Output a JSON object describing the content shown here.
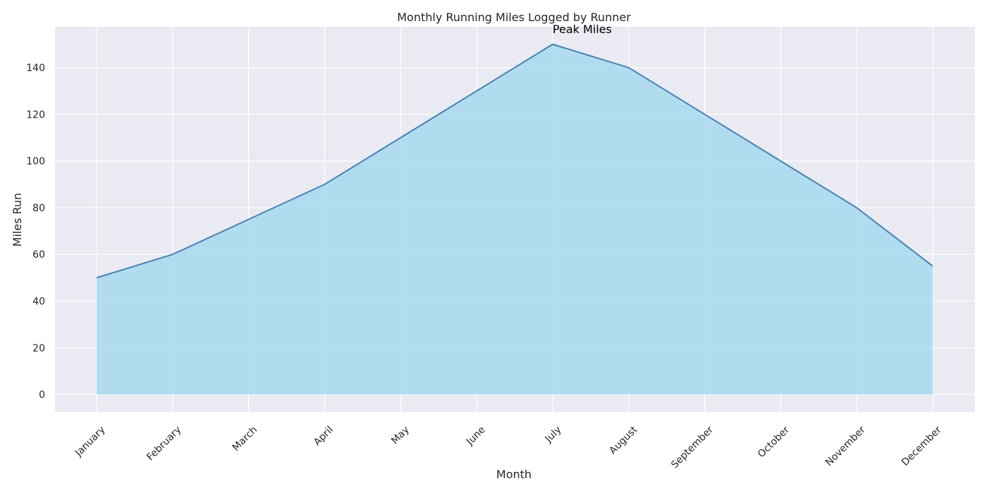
{
  "chart_data": {
    "type": "area",
    "title": "Monthly Running Miles Logged by Runner",
    "xlabel": "Month",
    "ylabel": "Miles Run",
    "categories": [
      "January",
      "February",
      "March",
      "April",
      "May",
      "June",
      "July",
      "August",
      "September",
      "October",
      "November",
      "December"
    ],
    "values": [
      50,
      60,
      75,
      90,
      110,
      130,
      150,
      140,
      120,
      100,
      80,
      55
    ],
    "ylim": [
      -7.5,
      157.5
    ],
    "yticks": [
      0,
      20,
      40,
      60,
      80,
      100,
      120,
      140
    ],
    "grid": true,
    "annotation": {
      "text": "Peak Miles",
      "x": "July",
      "y": 150
    },
    "colors": {
      "fill": "#a7d8ef",
      "line": "#4682b4",
      "plot_background": "#eaeaf2",
      "grid": "#ffffff"
    }
  }
}
